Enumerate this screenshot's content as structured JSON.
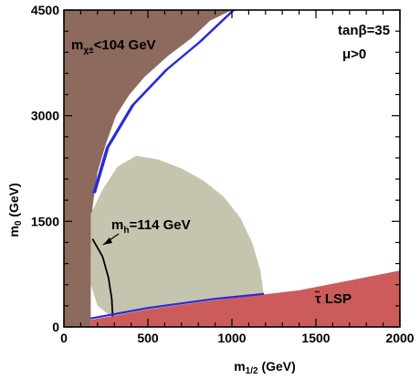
{
  "chart_data": {
    "type": "area",
    "title": "",
    "xlabel": "m1/2 (GeV)",
    "ylabel": "m0 (GeV)",
    "xlim": [
      0,
      2000
    ],
    "ylim": [
      0,
      4500
    ],
    "x_ticks": [
      0,
      500,
      1000,
      1500,
      2000
    ],
    "y_ticks": [
      0,
      1500,
      3000,
      4500
    ],
    "grid": false,
    "colors": {
      "chargino_excluded": "#8c6a5d",
      "stau_lsp": "#cc5c5c",
      "gminus2_favored": "#c5c4ae",
      "relic_density": "#2a2ad8",
      "higgs_line": "#000000"
    },
    "params": {
      "tanbeta_label": "tanβ=35",
      "mu_label": "μ>0"
    },
    "regions": [
      {
        "name": "chargino-excluded",
        "label": "m",
        "label_sub": "χ±",
        "label_rest": "<104 GeV",
        "boundary": [
          [
            0,
            4500
          ],
          [
            1000,
            4500
          ],
          [
            870,
            4350
          ],
          [
            760,
            4100
          ],
          [
            620,
            3850
          ],
          [
            480,
            3550
          ],
          [
            390,
            3300
          ],
          [
            310,
            3000
          ],
          [
            250,
            2600
          ],
          [
            200,
            2200
          ],
          [
            170,
            1700
          ],
          [
            160,
            1000
          ],
          [
            160,
            0
          ],
          [
            0,
            0
          ]
        ]
      },
      {
        "name": "stau-lsp",
        "label": "τ̃ LSP",
        "boundary": [
          [
            160,
            0
          ],
          [
            2000,
            0
          ],
          [
            2000,
            800
          ],
          [
            1400,
            520
          ],
          [
            900,
            380
          ],
          [
            500,
            250
          ],
          [
            280,
            150
          ],
          [
            160,
            100
          ]
        ]
      },
      {
        "name": "gminus2-favored",
        "label": "",
        "boundary": [
          [
            160,
            1600
          ],
          [
            230,
            1950
          ],
          [
            320,
            2280
          ],
          [
            430,
            2430
          ],
          [
            560,
            2380
          ],
          [
            700,
            2250
          ],
          [
            830,
            2080
          ],
          [
            950,
            1850
          ],
          [
            1050,
            1550
          ],
          [
            1120,
            1200
          ],
          [
            1170,
            800
          ],
          [
            1190,
            450
          ],
          [
            900,
            370
          ],
          [
            500,
            250
          ],
          [
            280,
            150
          ],
          [
            200,
            300
          ],
          [
            160,
            600
          ]
        ]
      },
      {
        "name": "relic-density-strip",
        "label": "",
        "boundary": [
          [
            170,
            1900
          ],
          [
            250,
            2550
          ],
          [
            400,
            3150
          ],
          [
            600,
            3650
          ],
          [
            800,
            4050
          ],
          [
            1000,
            4500
          ],
          [
            1020,
            4500
          ],
          [
            820,
            4050
          ],
          [
            620,
            3650
          ],
          [
            420,
            3150
          ],
          [
            270,
            2550
          ],
          [
            190,
            1900
          ]
        ]
      }
    ],
    "lines": [
      {
        "name": "higgs-mass-114",
        "label": "mh=114 GeV",
        "label_pre": "m",
        "label_sub": "h",
        "label_rest": "=114 GeV",
        "points": [
          [
            170,
            1250
          ],
          [
            230,
            1000
          ],
          [
            265,
            700
          ],
          [
            285,
            400
          ],
          [
            290,
            150
          ]
        ]
      },
      {
        "name": "stau-coannihilation-strip",
        "label": "",
        "points": [
          [
            160,
            120
          ],
          [
            500,
            270
          ],
          [
            900,
            400
          ],
          [
            1190,
            470
          ]
        ]
      }
    ]
  }
}
